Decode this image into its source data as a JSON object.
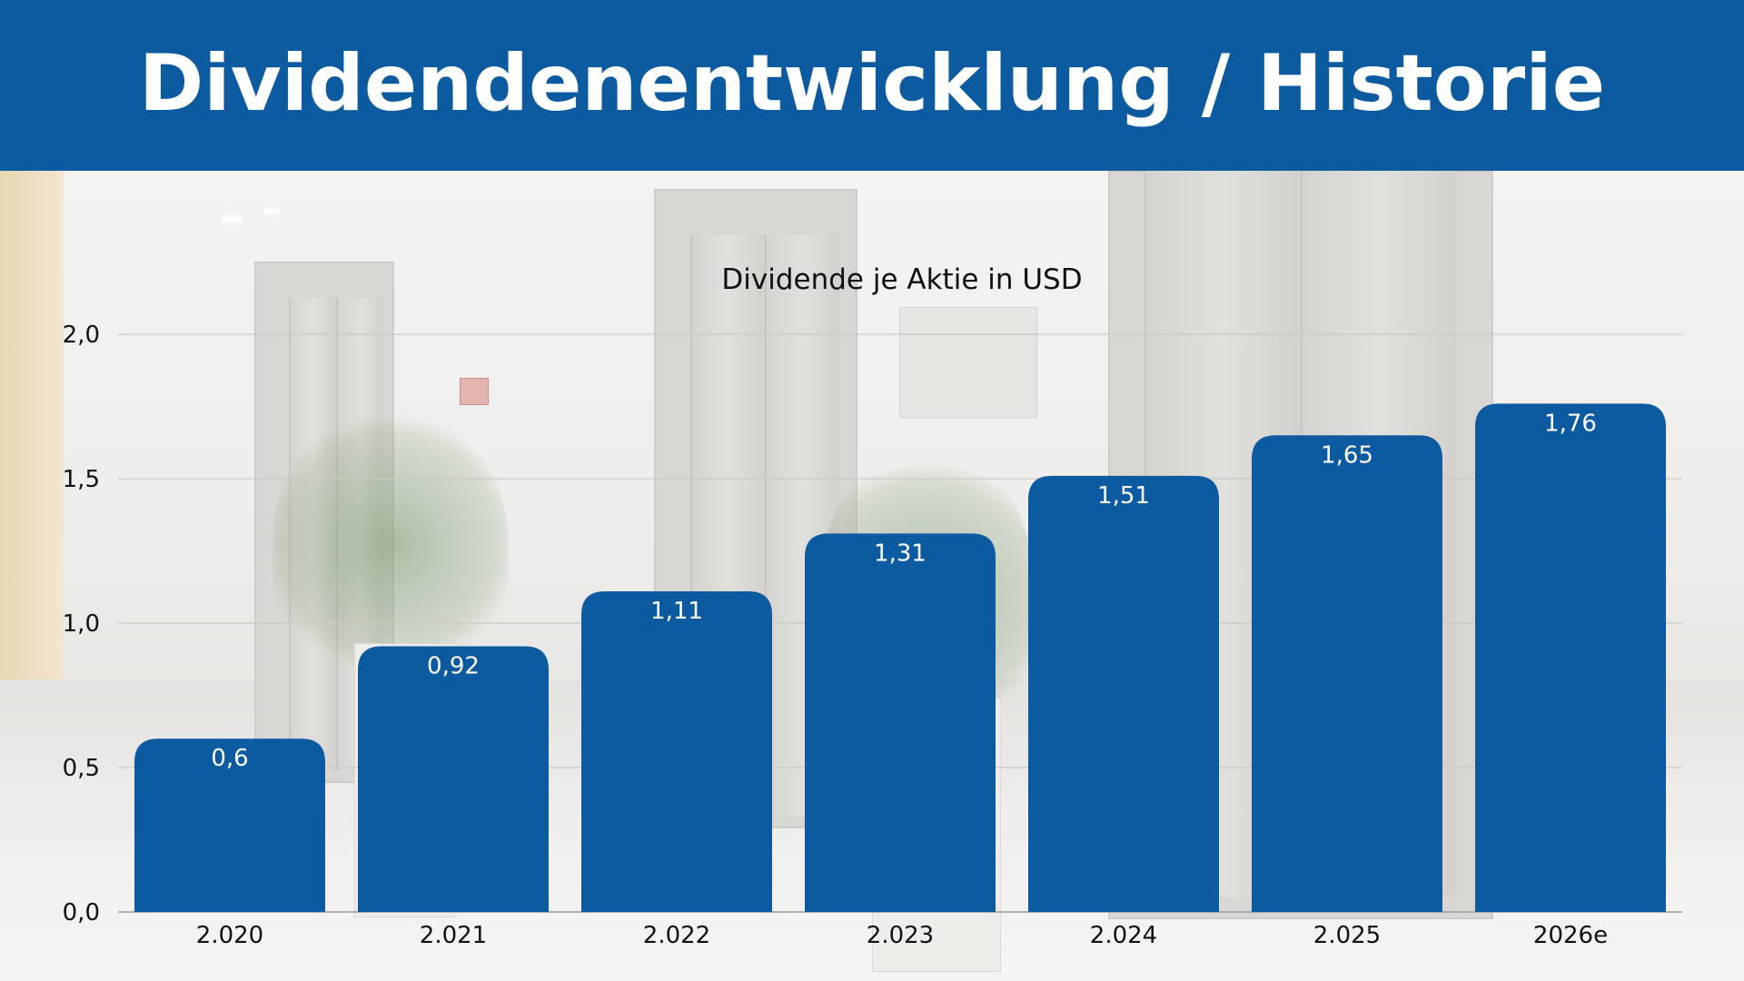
{
  "header": {
    "title": "Dividendenentwicklung / Historie"
  },
  "colors": {
    "header_bg": "#0c5aa0",
    "bar": "#0c5aa0",
    "title_text": "#ffffff",
    "value_label_text": "#ffffff",
    "axis_text": "#111111"
  },
  "chart_data": {
    "type": "bar",
    "title": "Dividende je Aktie in USD",
    "xlabel": "",
    "ylabel": "",
    "categories": [
      "2.020",
      "2.021",
      "2.022",
      "2.023",
      "2.024",
      "2.025",
      "2026e"
    ],
    "values": [
      0.6,
      0.92,
      1.11,
      1.31,
      1.51,
      1.65,
      1.76
    ],
    "value_labels": [
      "0,6",
      "0,92",
      "1,11",
      "1,31",
      "1,51",
      "1,65",
      "1,76"
    ],
    "y_ticks": [
      0,
      0.5,
      1.0,
      1.5,
      2.0
    ],
    "y_tick_labels": [
      "0,0",
      "0,5",
      "1,0",
      "1,5",
      "2,0"
    ],
    "ylim": [
      0,
      2.0
    ],
    "grid": true,
    "legend": "none"
  }
}
